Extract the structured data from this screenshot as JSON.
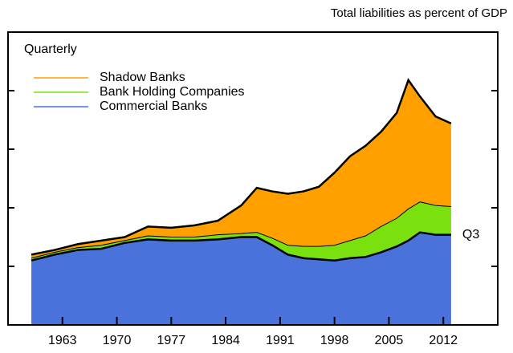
{
  "chart_data": {
    "type": "stacked-area",
    "title": "Total liabilities as percent of GDP",
    "annotations": [
      "Quarterly",
      "Q3"
    ],
    "x": [
      1959,
      1962,
      1965,
      1968,
      1971,
      1974,
      1977,
      1980,
      1983,
      1986,
      1988,
      1990,
      1992,
      1994,
      1996,
      1998,
      2000,
      2002,
      2004,
      2006,
      2007.5,
      2009,
      2011,
      2013
    ],
    "series": [
      {
        "name": "Commercial Banks",
        "color": "#4a72db",
        "values": [
          55,
          60,
          64,
          65,
          70,
          73,
          72,
          72,
          73,
          75,
          75,
          68,
          60,
          57,
          56,
          55,
          57,
          58,
          62,
          67,
          72,
          79,
          77,
          77
        ]
      },
      {
        "name": "Bank Holding Companies",
        "color": "#7ae10f",
        "values": [
          2,
          2,
          2,
          3,
          2,
          3,
          3,
          3,
          4,
          3,
          4,
          6,
          8,
          10,
          11,
          13,
          15,
          18,
          22,
          24,
          27,
          26,
          25,
          24
        ]
      },
      {
        "name": "Shadow Banks",
        "color": "#ff9f00",
        "values": [
          3,
          2,
          3,
          4,
          3,
          8,
          8,
          10,
          12,
          24,
          38,
          40,
          44,
          47,
          51,
          62,
          72,
          77,
          81,
          90,
          110,
          90,
          76,
          71
        ]
      }
    ],
    "xlim": [
      1956,
      2019
    ],
    "xticks": [
      1963,
      1970,
      1977,
      1984,
      1991,
      1998,
      2005,
      2012
    ],
    "ylim": [
      0,
      250
    ],
    "yticks": [
      50,
      100,
      150,
      200
    ]
  }
}
